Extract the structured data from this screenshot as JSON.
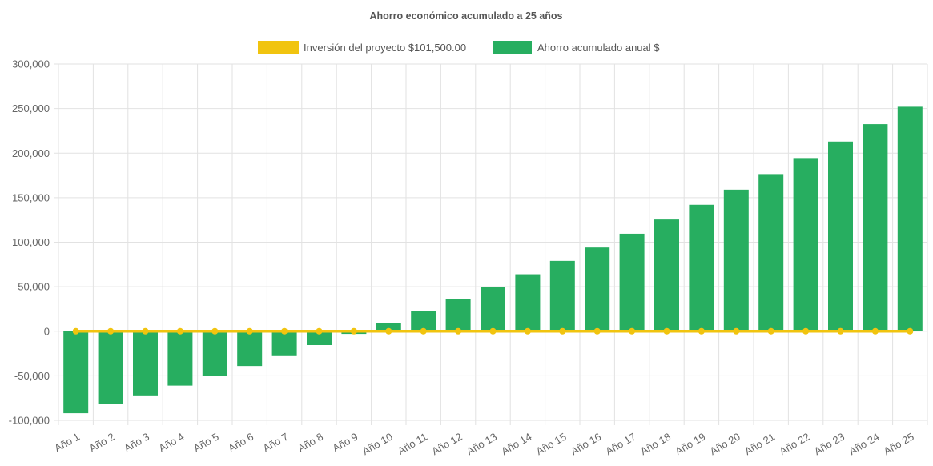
{
  "chart_data": {
    "type": "bar",
    "title": "Ahorro económico acumulado a 25 años",
    "categories": [
      "Año 1",
      "Año 2",
      "Año 3",
      "Año 4",
      "Año 5",
      "Año 6",
      "Año 7",
      "Año 8",
      "Año 9",
      "Año 10",
      "Año 11",
      "Año 12",
      "Año 13",
      "Año 14",
      "Año 15",
      "Año 16",
      "Año 17",
      "Año 18",
      "Año 19",
      "Año 20",
      "Año 21",
      "Año 22",
      "Año 23",
      "Año 24",
      "Año 25"
    ],
    "series": [
      {
        "name": "Inversión del proyecto $101,500.00",
        "render": "line",
        "color": "#f1c40f",
        "values": [
          0,
          0,
          0,
          0,
          0,
          0,
          0,
          0,
          0,
          0,
          0,
          0,
          0,
          0,
          0,
          0,
          0,
          0,
          0,
          0,
          0,
          0,
          0,
          0,
          0
        ]
      },
      {
        "name": "Ahorro acumulado anual $",
        "render": "bar",
        "color": "#27ae60",
        "values": [
          -92000,
          -82000,
          -72000,
          -61000,
          -50000,
          -39000,
          -27000,
          -15500,
          -3000,
          9500,
          22500,
          36000,
          50000,
          64000,
          79000,
          94000,
          109500,
          125500,
          142000,
          159000,
          176500,
          194500,
          213000,
          232500,
          252000
        ]
      }
    ],
    "ylim": [
      -100000,
      300000
    ],
    "yticks": [
      "300,000",
      "250,000",
      "200,000",
      "150,000",
      "100,000",
      "50,000",
      "0",
      "-50,000",
      "-100,000"
    ],
    "ytick_values": [
      300000,
      250000,
      200000,
      150000,
      100000,
      50000,
      0,
      -50000,
      -100000
    ],
    "grid": true,
    "legend_position": "top-center"
  }
}
